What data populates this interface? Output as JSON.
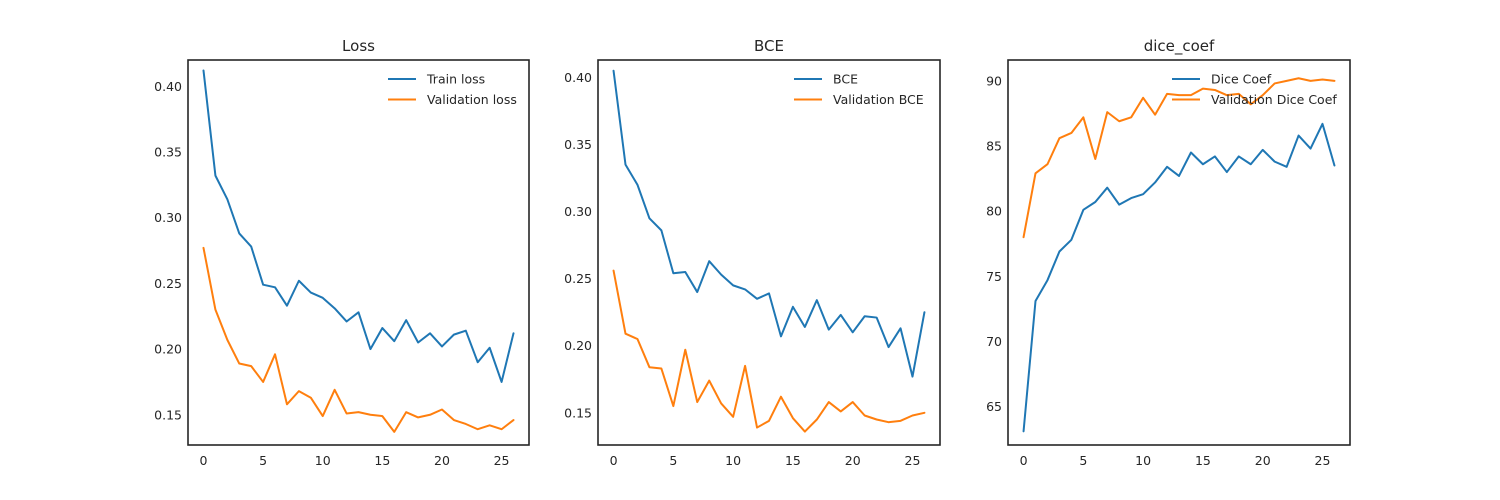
{
  "colors": {
    "train": "#1f77b4",
    "validation": "#ff7f0e",
    "axes": "#262626",
    "background": "#ffffff"
  },
  "chart_data": [
    {
      "type": "line",
      "title": "Loss",
      "xlabel": "",
      "ylabel": "",
      "xlim": [
        -1.3,
        27.3
      ],
      "ylim": [
        0.127,
        0.42
      ],
      "xticks": [
        0,
        5,
        10,
        15,
        20,
        25
      ],
      "xtick_labels": [
        "0",
        "5",
        "10",
        "15",
        "20",
        "25"
      ],
      "yticks": [
        0.15,
        0.2,
        0.25,
        0.3,
        0.35,
        0.4
      ],
      "ytick_labels": [
        "0.15",
        "0.20",
        "0.25",
        "0.30",
        "0.35",
        "0.40"
      ],
      "grid": false,
      "legend_position": "upper right",
      "x": [
        0,
        1,
        2,
        3,
        4,
        5,
        6,
        7,
        8,
        9,
        10,
        11,
        12,
        13,
        14,
        15,
        16,
        17,
        18,
        19,
        20,
        21,
        22,
        23,
        24,
        25,
        26
      ],
      "series": [
        {
          "name": "Train loss",
          "color": "#1f77b4",
          "values": [
            0.412,
            0.332,
            0.314,
            0.288,
            0.278,
            0.249,
            0.247,
            0.233,
            0.252,
            0.243,
            0.239,
            0.231,
            0.221,
            0.228,
            0.2,
            0.216,
            0.206,
            0.222,
            0.205,
            0.212,
            0.202,
            0.211,
            0.214,
            0.19,
            0.201,
            0.175,
            0.212
          ]
        },
        {
          "name": "Validation loss",
          "color": "#ff7f0e",
          "values": [
            0.277,
            0.23,
            0.207,
            0.189,
            0.187,
            0.175,
            0.196,
            0.158,
            0.168,
            0.163,
            0.149,
            0.169,
            0.151,
            0.152,
            0.15,
            0.149,
            0.137,
            0.152,
            0.148,
            0.15,
            0.154,
            0.146,
            0.143,
            0.139,
            0.142,
            0.139,
            0.146
          ]
        }
      ]
    },
    {
      "type": "line",
      "title": "BCE",
      "xlabel": "",
      "ylabel": "",
      "xlim": [
        -1.3,
        27.3
      ],
      "ylim": [
        0.126,
        0.413
      ],
      "xticks": [
        0,
        5,
        10,
        15,
        20,
        25
      ],
      "xtick_labels": [
        "0",
        "5",
        "10",
        "15",
        "20",
        "25"
      ],
      "yticks": [
        0.15,
        0.2,
        0.25,
        0.3,
        0.35,
        0.4
      ],
      "ytick_labels": [
        "0.15",
        "0.20",
        "0.25",
        "0.30",
        "0.35",
        "0.40"
      ],
      "grid": false,
      "legend_position": "upper right",
      "x": [
        0,
        1,
        2,
        3,
        4,
        5,
        6,
        7,
        8,
        9,
        10,
        11,
        12,
        13,
        14,
        15,
        16,
        17,
        18,
        19,
        20,
        21,
        22,
        23,
        24,
        25,
        26
      ],
      "series": [
        {
          "name": "BCE",
          "color": "#1f77b4",
          "values": [
            0.405,
            0.335,
            0.32,
            0.295,
            0.286,
            0.254,
            0.255,
            0.24,
            0.263,
            0.253,
            0.245,
            0.242,
            0.235,
            0.239,
            0.207,
            0.229,
            0.214,
            0.234,
            0.212,
            0.223,
            0.21,
            0.222,
            0.221,
            0.199,
            0.213,
            0.177,
            0.225
          ]
        },
        {
          "name": "Validation BCE",
          "color": "#ff7f0e",
          "values": [
            0.256,
            0.209,
            0.205,
            0.184,
            0.183,
            0.155,
            0.197,
            0.158,
            0.174,
            0.157,
            0.147,
            0.185,
            0.139,
            0.144,
            0.162,
            0.146,
            0.136,
            0.145,
            0.158,
            0.151,
            0.158,
            0.148,
            0.145,
            0.143,
            0.144,
            0.148,
            0.15
          ]
        }
      ]
    },
    {
      "type": "line",
      "title": "dice_coef",
      "xlabel": "",
      "ylabel": "",
      "xlim": [
        -1.3,
        27.3
      ],
      "ylim": [
        62.05,
        91.6
      ],
      "xticks": [
        0,
        5,
        10,
        15,
        20,
        25
      ],
      "xtick_labels": [
        "0",
        "5",
        "10",
        "15",
        "20",
        "25"
      ],
      "yticks": [
        65,
        70,
        75,
        80,
        85,
        90
      ],
      "ytick_labels": [
        "65",
        "70",
        "75",
        "80",
        "85",
        "90"
      ],
      "grid": false,
      "legend_position": "upper right",
      "x": [
        0,
        1,
        2,
        3,
        4,
        5,
        6,
        7,
        8,
        9,
        10,
        11,
        12,
        13,
        14,
        15,
        16,
        17,
        18,
        19,
        20,
        21,
        22,
        23,
        24,
        25,
        26
      ],
      "series": [
        {
          "name": "Dice Coef",
          "color": "#1f77b4",
          "values": [
            63.1,
            73.1,
            74.7,
            76.9,
            77.8,
            80.1,
            80.7,
            81.8,
            80.5,
            81.0,
            81.3,
            82.2,
            83.4,
            82.7,
            84.5,
            83.6,
            84.2,
            83.0,
            84.2,
            83.6,
            84.7,
            83.8,
            83.4,
            85.8,
            84.8,
            86.7,
            83.5
          ]
        },
        {
          "name": "Validation Dice Coef",
          "color": "#ff7f0e",
          "values": [
            78.0,
            82.9,
            83.6,
            85.6,
            86.0,
            87.2,
            84.0,
            87.6,
            86.9,
            87.2,
            88.7,
            87.4,
            89.0,
            88.9,
            88.9,
            89.4,
            89.3,
            88.9,
            89.0,
            88.2,
            88.9,
            89.8,
            90.0,
            90.2,
            90.0,
            90.1,
            90.0
          ]
        }
      ]
    }
  ]
}
